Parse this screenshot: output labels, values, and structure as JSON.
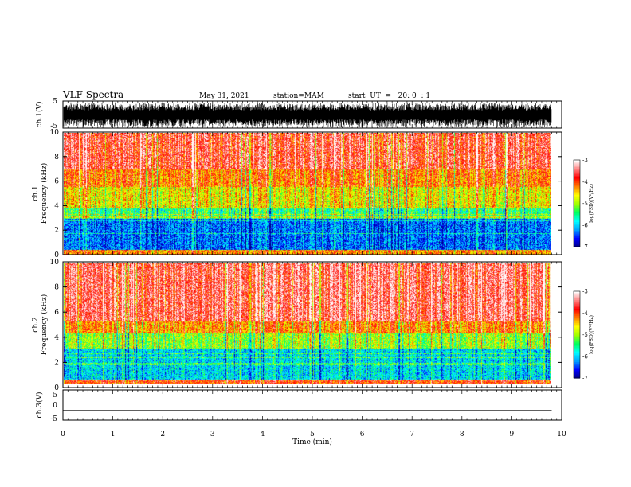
{
  "header": {
    "title": "VLF Spectra",
    "date": "May 31, 2021",
    "station": "station=MAM",
    "start_ut": "start  UT  =   20: 0  : 1"
  },
  "chart_data": [
    {
      "type": "line",
      "id": "ch1_waveform",
      "ylabel": "ch.1(V)",
      "ylim": [
        -5,
        5
      ],
      "yticks": [
        "5",
        "-5"
      ],
      "xlim": [
        0,
        10
      ],
      "description_values": "dense broadband waveform spanning approximately -4.5 V to +4.5 V"
    },
    {
      "type": "heatmap",
      "id": "ch1_spectrogram",
      "ylabel": "ch.1\nFrequency (kHz)",
      "ylim": [
        0,
        10
      ],
      "yticks": [
        "0",
        "2",
        "4",
        "6",
        "8",
        "10"
      ],
      "xlim": [
        0,
        10
      ],
      "colorbar": {
        "label": "log(PSD)(V²/Hz)",
        "range": [
          -7,
          -3
        ],
        "ticks": [
          "-3",
          "-4",
          "-5",
          "-6",
          "-7"
        ]
      },
      "bands": [
        {
          "f_from": 0,
          "f_to": 0.4,
          "level": -4.2
        },
        {
          "f_from": 0.4,
          "f_to": 3.0,
          "level": -6.3
        },
        {
          "f_from": 3.0,
          "f_to": 3.8,
          "level": -5.4
        },
        {
          "f_from": 3.8,
          "f_to": 5.6,
          "level": -4.6
        },
        {
          "f_from": 5.6,
          "f_to": 7.0,
          "level": -4.1
        },
        {
          "f_from": 7.0,
          "f_to": 10,
          "level": -3.6
        }
      ]
    },
    {
      "type": "heatmap",
      "id": "ch2_spectrogram",
      "ylabel": "ch.2\nFrequency (kHz)",
      "ylim": [
        0,
        10
      ],
      "yticks": [
        "0",
        "2",
        "4",
        "6",
        "8",
        "10"
      ],
      "xlim": [
        0,
        10
      ],
      "colorbar": {
        "label": "log(PSD)(V²/Hz)",
        "range": [
          -7,
          -3
        ],
        "ticks": [
          "-3",
          "-4",
          "-5",
          "-6",
          "-7"
        ]
      },
      "bands": [
        {
          "f_from": 0,
          "f_to": 0.4,
          "level": -3.9
        },
        {
          "f_from": 0.4,
          "f_to": 3.0,
          "level": -5.9
        },
        {
          "f_from": 3.0,
          "f_to": 4.2,
          "level": -5.0
        },
        {
          "f_from": 4.2,
          "f_to": 5.2,
          "level": -4.2
        },
        {
          "f_from": 5.2,
          "f_to": 10,
          "level": -3.5
        }
      ]
    },
    {
      "type": "line",
      "id": "ch3_waveform",
      "ylabel": "ch.3(V)",
      "ylim": [
        -5,
        5
      ],
      "yticks": [
        "5",
        "0",
        "-5"
      ],
      "xlim": [
        0,
        10
      ],
      "x": [
        0,
        9.8
      ],
      "y": [
        -1.8,
        -1.8
      ]
    }
  ],
  "xaxis": {
    "label": "Time (min)",
    "ticks": [
      "0",
      "1",
      "2",
      "3",
      "4",
      "5",
      "6",
      "7",
      "8",
      "9",
      "10"
    ],
    "data_end": 9.8
  },
  "colormap": [
    "#000080",
    "#0000ff",
    "#00a0ff",
    "#00ffff",
    "#00ff60",
    "#a0ff00",
    "#ffff00",
    "#ff8000",
    "#ff0000",
    "#ff8080",
    "#ffffff"
  ]
}
